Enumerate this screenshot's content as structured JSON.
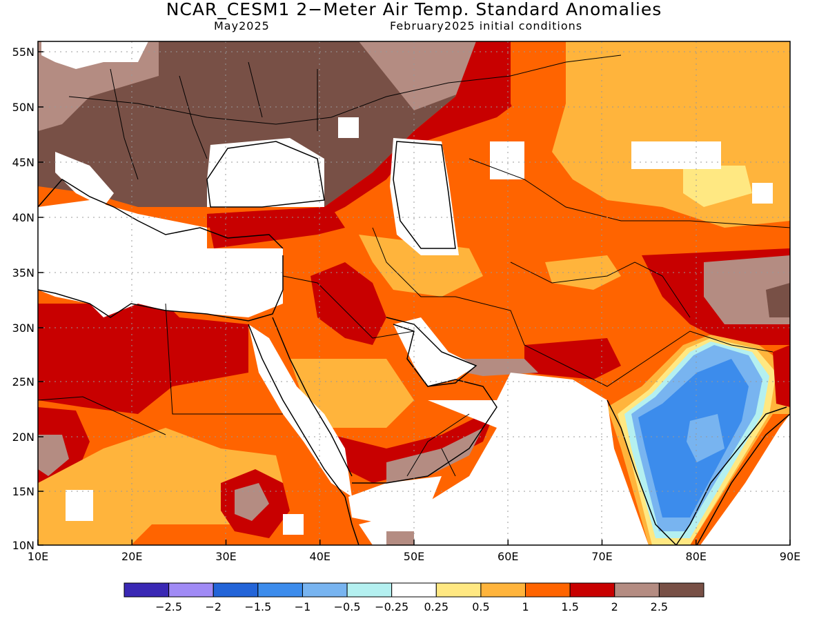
{
  "title": "NCAR_CESM1 2−Meter Air Temp. Standard Anomalies",
  "subtitle_left": "May2025",
  "subtitle_right": "February2025 initial conditions",
  "axes": {
    "lat_labels": [
      "55N",
      "50N",
      "45N",
      "40N",
      "35N",
      "30N",
      "25N",
      "20N",
      "15N",
      "10N"
    ],
    "lon_labels": [
      "10E",
      "20E",
      "30E",
      "40E",
      "50E",
      "60E",
      "70E",
      "80E",
      "90E"
    ],
    "lon_range": [
      10,
      90
    ],
    "lat_range": [
      10,
      56
    ]
  },
  "colorbar": {
    "colors": [
      "#3a28b4",
      "#a08af5",
      "#2364d8",
      "#3c8cec",
      "#78b4f0",
      "#b4f0f0",
      "#ffffff",
      "#ffe882",
      "#ffb43c",
      "#ff6400",
      "#c80000",
      "#b48c82",
      "#785046"
    ],
    "labels": [
      "−2.5",
      "−2",
      "−1.5",
      "−1",
      "−0.5",
      "−0.25",
      "0.25",
      "0.5",
      "1",
      "1.5",
      "2",
      "2.5"
    ]
  },
  "regions": {
    "europe_north": "#785046",
    "europe_edge": "#b48c82",
    "russia_band": "#c80000",
    "central_asia": "#ffb43c",
    "iran_afghan": "#ff6400",
    "arabia": "#ff6400",
    "arabia_core": "#c80000",
    "arabia_south": "#ffb43c",
    "africa": "#ff6400",
    "africa_hot": "#c80000",
    "africa_warm": "#ffb43c",
    "tibet": "#785046",
    "india_cool": "#3c8cec",
    "india_light": "#78b4f0",
    "india_rim": "#b4f0f0",
    "seas": "#ffffff"
  }
}
